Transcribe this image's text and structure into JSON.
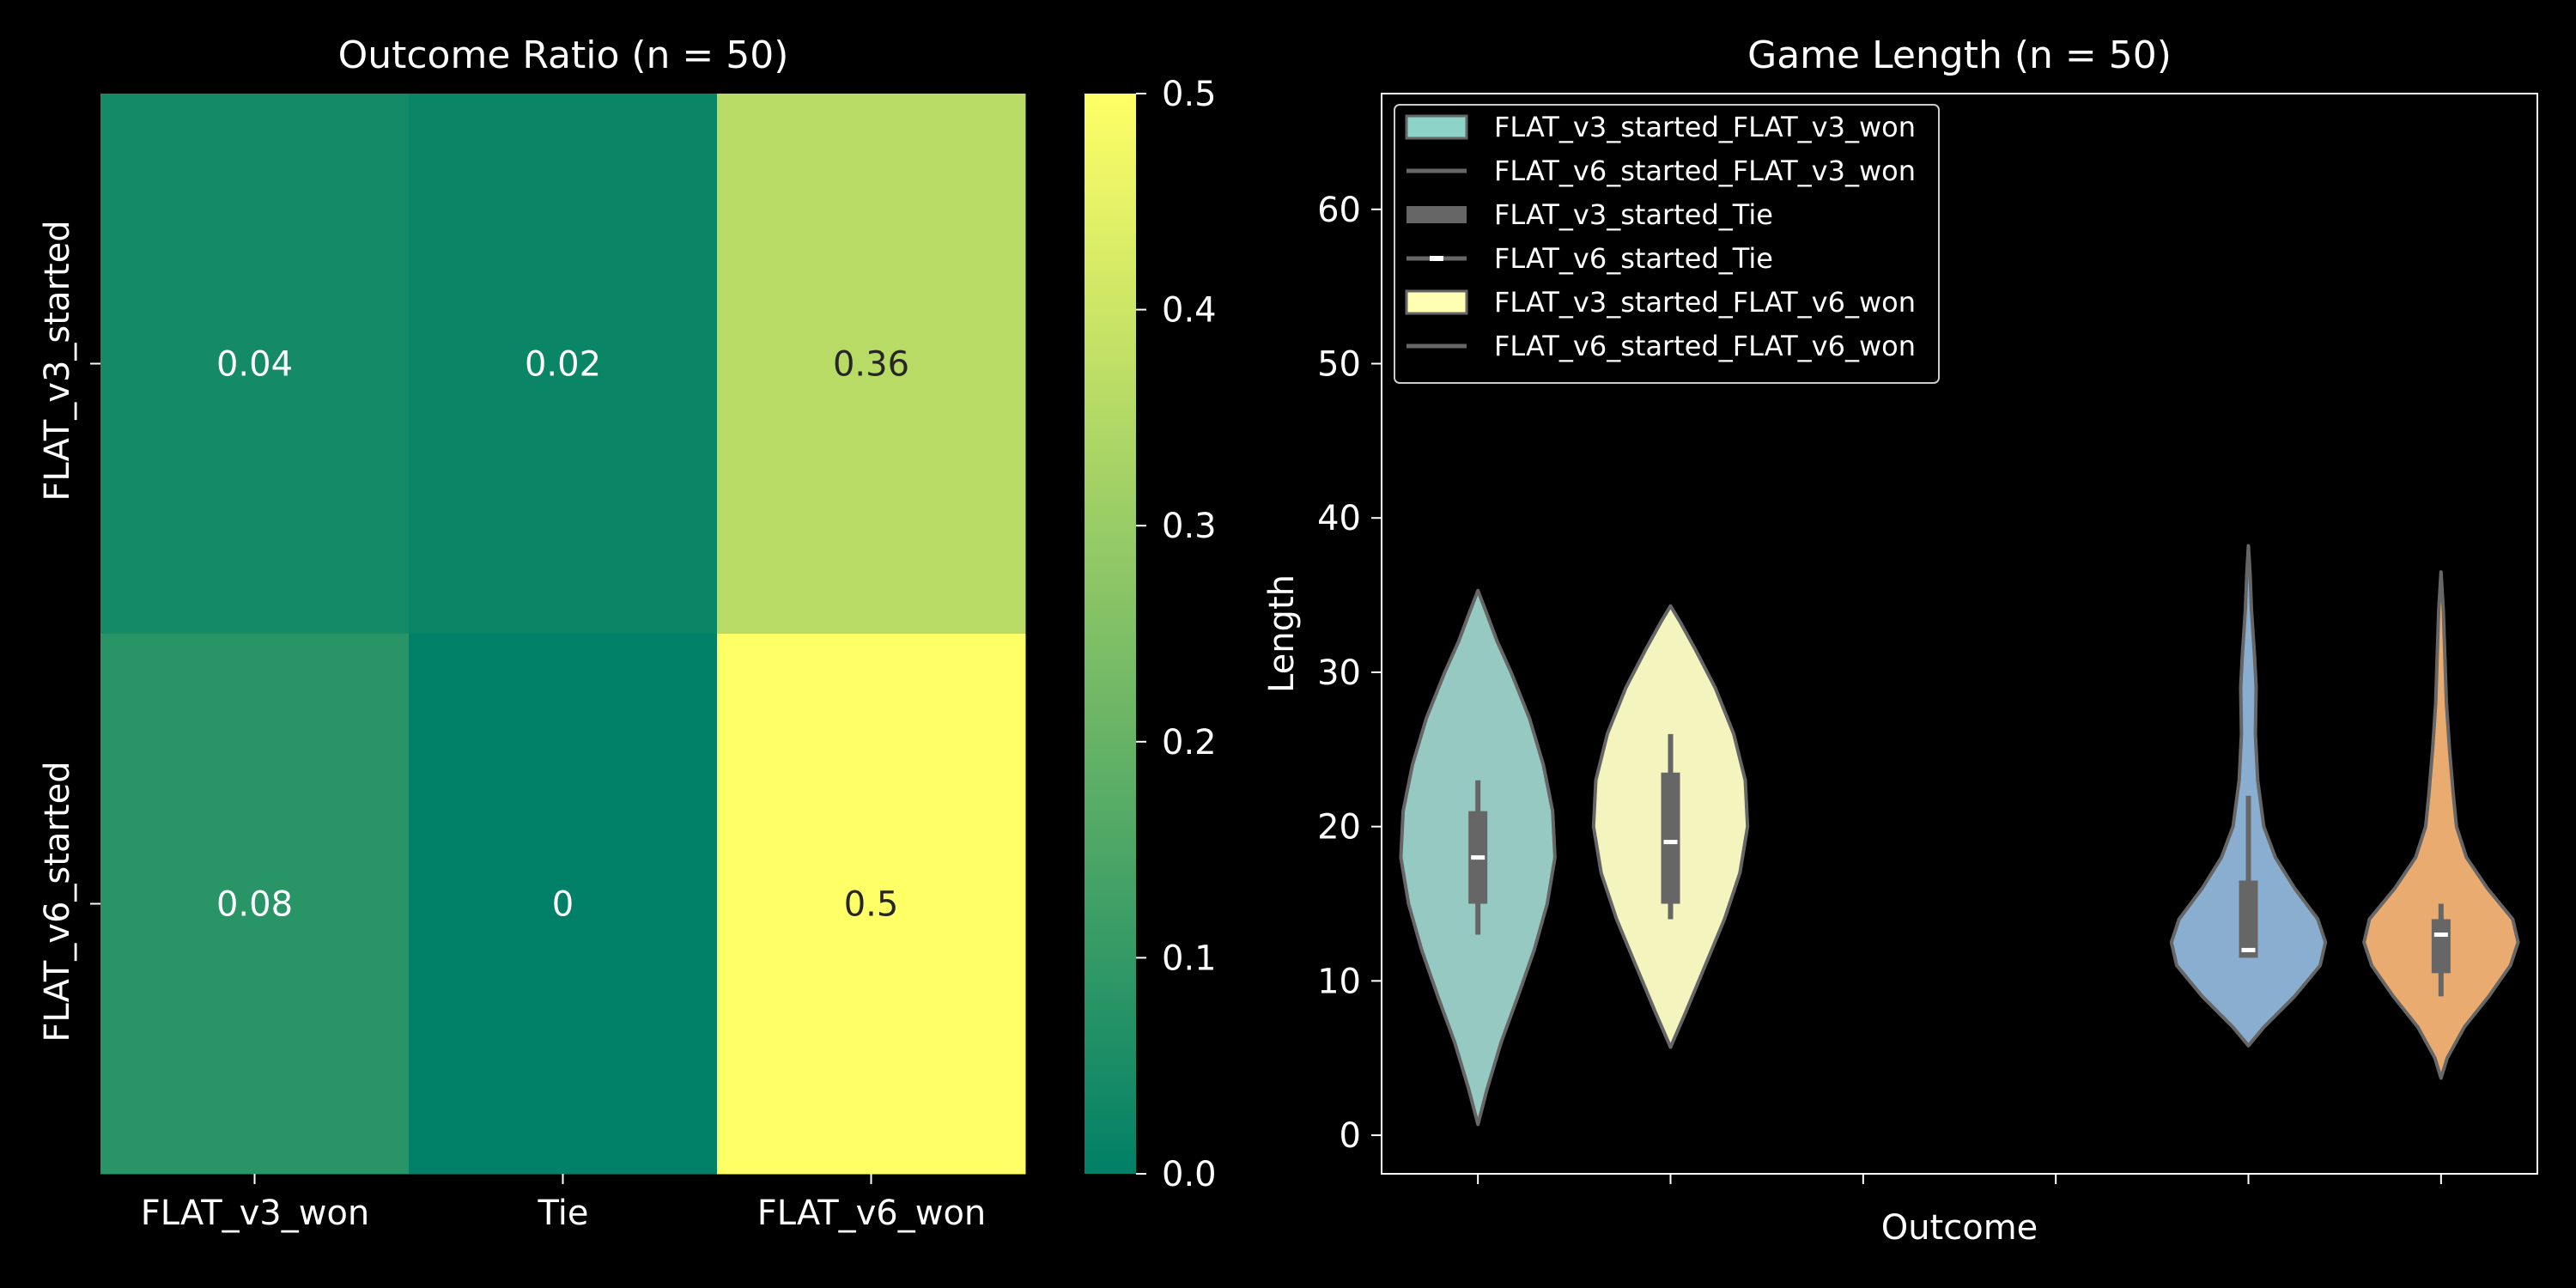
{
  "colors": {
    "background": "#000000",
    "foreground": "#ffffff",
    "violin_edge": "#666666",
    "heatmap_cmap": "summer",
    "cmap_start": "#008066",
    "cmap_end": "#ffff66",
    "dark_text": "#262626"
  },
  "chart_data": [
    {
      "type": "heatmap",
      "title": "Outcome Ratio (n = 50)",
      "xlabel": "",
      "ylabel": "",
      "rows": [
        "FLAT_v3_started",
        "FLAT_v6_started"
      ],
      "columns": [
        "FLAT_v3_won",
        "Tie",
        "FLAT_v6_won"
      ],
      "values": [
        [
          0.04,
          0.02,
          0.36
        ],
        [
          0.08,
          0,
          0.5
        ]
      ],
      "cell_labels": [
        [
          "0.04",
          "0.02",
          "0.36"
        ],
        [
          "0.08",
          "0",
          "0.5"
        ]
      ],
      "colorbar": {
        "range": [
          0.0,
          0.5
        ],
        "ticks": [
          0.0,
          0.1,
          0.2,
          0.3,
          0.4,
          0.5
        ],
        "tick_labels": [
          "0.0",
          "0.1",
          "0.2",
          "0.3",
          "0.4",
          "0.5"
        ]
      }
    },
    {
      "type": "violin",
      "title": "Game Length (n = 50)",
      "xlabel": "Outcome",
      "ylabel": "Length",
      "ylim": [
        -2.5,
        67.5
      ],
      "yticks": [
        0,
        10,
        20,
        30,
        40,
        50,
        60
      ],
      "ytick_labels": [
        "0",
        "10",
        "20",
        "30",
        "40",
        "50",
        "60"
      ],
      "positions": 6,
      "legend": {
        "placement": "upper left",
        "entries": [
          {
            "label": "FLAT_v3_started_FLAT_v3_won",
            "symbol": "patch",
            "color": "#8dd3c7"
          },
          {
            "label": "FLAT_v6_started_FLAT_v3_won",
            "symbol": "line"
          },
          {
            "label": "FLAT_v3_started_Tie",
            "symbol": "thick-line"
          },
          {
            "label": "FLAT_v6_started_Tie",
            "symbol": "median-line"
          },
          {
            "label": "FLAT_v3_started_FLAT_v6_won",
            "symbol": "patch",
            "color": "#ffffb3"
          },
          {
            "label": "FLAT_v6_started_FLAT_v6_won",
            "symbol": "line"
          }
        ]
      },
      "series": [
        {
          "position": 0,
          "color": "#95c9c1",
          "min": 0.7,
          "max": 35.3,
          "q1": 15,
          "median": 18,
          "q3": 21,
          "whisker_low": 13,
          "whisker_high": 23,
          "density": [
            [
              0.7,
              0
            ],
            [
              3,
              0.12
            ],
            [
              6,
              0.3
            ],
            [
              9,
              0.52
            ],
            [
              12,
              0.73
            ],
            [
              15,
              0.9
            ],
            [
              18,
              1.0
            ],
            [
              21,
              0.97
            ],
            [
              24,
              0.85
            ],
            [
              27,
              0.67
            ],
            [
              30,
              0.43
            ],
            [
              32,
              0.25
            ],
            [
              34,
              0.1
            ],
            [
              35.3,
              0
            ]
          ]
        },
        {
          "position": 1,
          "color": "#f4f4bf",
          "min": 5.7,
          "max": 34.3,
          "q1": 15,
          "median": 19,
          "q3": 23.5,
          "whisker_low": 14,
          "whisker_high": 26,
          "density": [
            [
              5.7,
              0
            ],
            [
              8,
              0.2
            ],
            [
              11,
              0.45
            ],
            [
              14,
              0.7
            ],
            [
              17,
              0.9
            ],
            [
              20,
              1.0
            ],
            [
              23,
              0.97
            ],
            [
              26,
              0.82
            ],
            [
              29,
              0.58
            ],
            [
              31.5,
              0.32
            ],
            [
              33.3,
              0.12
            ],
            [
              34.3,
              0
            ]
          ]
        },
        {
          "position": 4,
          "color": "#8aaed0",
          "min": 5.8,
          "max": 38.2,
          "q1": 11.5,
          "median": 12,
          "q3": 16.5,
          "whisker_low": 11.5,
          "whisker_high": 22,
          "density": [
            [
              5.8,
              0
            ],
            [
              7,
              0.2
            ],
            [
              9,
              0.6
            ],
            [
              11,
              0.93
            ],
            [
              12.5,
              1.0
            ],
            [
              14,
              0.9
            ],
            [
              16,
              0.6
            ],
            [
              18,
              0.35
            ],
            [
              20,
              0.2
            ],
            [
              23,
              0.12
            ],
            [
              26,
              0.09
            ],
            [
              29,
              0.1
            ],
            [
              31,
              0.08
            ],
            [
              34,
              0.04
            ],
            [
              36.5,
              0.02
            ],
            [
              38.2,
              0
            ]
          ]
        },
        {
          "position": 5,
          "color": "#e9ab70",
          "min": 3.7,
          "max": 36.5,
          "q1": 10.5,
          "median": 13,
          "q3": 14,
          "whisker_low": 9,
          "whisker_high": 15,
          "density": [
            [
              3.7,
              0
            ],
            [
              5,
              0.08
            ],
            [
              7,
              0.3
            ],
            [
              9,
              0.62
            ],
            [
              11,
              0.9
            ],
            [
              12.5,
              1.0
            ],
            [
              14,
              0.93
            ],
            [
              16,
              0.6
            ],
            [
              18,
              0.33
            ],
            [
              20,
              0.2
            ],
            [
              22,
              0.16
            ],
            [
              25,
              0.11
            ],
            [
              28,
              0.07
            ],
            [
              31,
              0.05
            ],
            [
              34,
              0.03
            ],
            [
              36.5,
              0
            ]
          ]
        }
      ]
    }
  ]
}
